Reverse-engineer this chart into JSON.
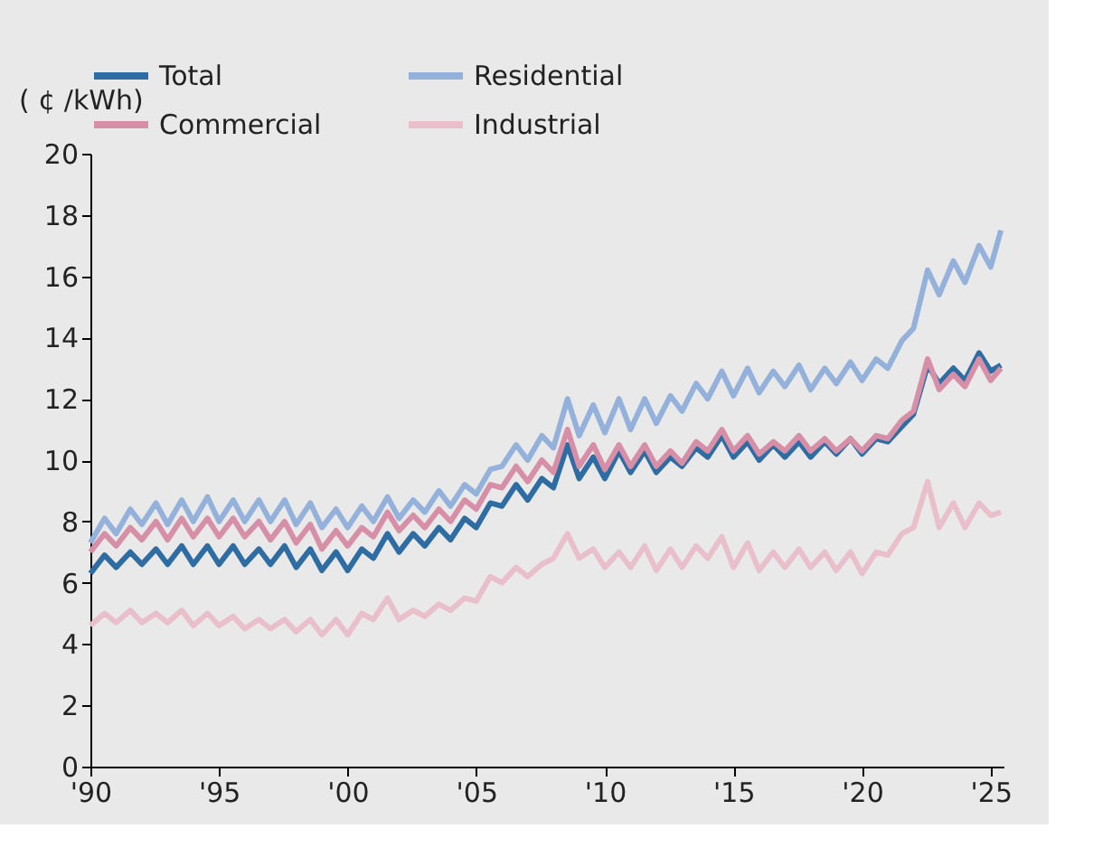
{
  "chart_data": {
    "type": "line",
    "ylabel": "( ¢ /kWh)",
    "x": [
      1990.0,
      1990.55,
      1991.0,
      1991.55,
      1992.0,
      1992.55,
      1993.0,
      1993.55,
      1994.0,
      1994.55,
      1995.0,
      1995.55,
      1996.0,
      1996.55,
      1997.0,
      1997.55,
      1998.0,
      1998.55,
      1999.0,
      1999.55,
      2000.0,
      2000.55,
      2001.0,
      2001.55,
      2002.0,
      2002.55,
      2003.0,
      2003.55,
      2004.0,
      2004.55,
      2005.0,
      2005.55,
      2006.0,
      2006.55,
      2007.0,
      2007.55,
      2008.0,
      2008.55,
      2009.0,
      2009.55,
      2010.0,
      2010.55,
      2011.0,
      2011.55,
      2012.0,
      2012.55,
      2013.0,
      2013.55,
      2014.0,
      2014.55,
      2015.0,
      2015.55,
      2016.0,
      2016.55,
      2017.0,
      2017.55,
      2018.0,
      2018.55,
      2019.0,
      2019.55,
      2020.0,
      2020.55,
      2021.0,
      2021.55,
      2022.0,
      2022.55,
      2023.0,
      2023.55,
      2024.0,
      2024.55,
      2025.0,
      2025.4
    ],
    "series": [
      {
        "name": "Total",
        "color": "#2e6ca4",
        "values": [
          6.3,
          6.9,
          6.5,
          7.0,
          6.6,
          7.1,
          6.6,
          7.2,
          6.6,
          7.2,
          6.6,
          7.2,
          6.6,
          7.1,
          6.6,
          7.2,
          6.5,
          7.1,
          6.4,
          7.0,
          6.4,
          7.1,
          6.8,
          7.6,
          7.0,
          7.6,
          7.2,
          7.8,
          7.4,
          8.1,
          7.8,
          8.6,
          8.5,
          9.2,
          8.7,
          9.4,
          9.1,
          10.5,
          9.4,
          10.1,
          9.4,
          10.3,
          9.6,
          10.3,
          9.6,
          10.1,
          9.8,
          10.4,
          10.1,
          10.8,
          10.1,
          10.6,
          10.0,
          10.5,
          10.1,
          10.6,
          10.1,
          10.6,
          10.2,
          10.7,
          10.2,
          10.7,
          10.6,
          11.1,
          11.5,
          13.1,
          12.5,
          13.0,
          12.6,
          13.5,
          12.9,
          13.1
        ]
      },
      {
        "name": "Residential",
        "color": "#93b1da",
        "values": [
          7.3,
          8.1,
          7.6,
          8.4,
          7.9,
          8.6,
          7.9,
          8.7,
          8.0,
          8.8,
          8.0,
          8.7,
          8.0,
          8.7,
          8.0,
          8.7,
          7.9,
          8.6,
          7.8,
          8.4,
          7.8,
          8.5,
          8.0,
          8.8,
          8.1,
          8.7,
          8.3,
          9.0,
          8.5,
          9.2,
          8.9,
          9.7,
          9.8,
          10.5,
          10.0,
          10.8,
          10.4,
          12.0,
          10.8,
          11.8,
          10.9,
          12.0,
          11.0,
          12.0,
          11.2,
          12.1,
          11.6,
          12.5,
          12.0,
          12.9,
          12.1,
          13.0,
          12.2,
          12.9,
          12.4,
          13.1,
          12.3,
          13.0,
          12.5,
          13.2,
          12.6,
          13.3,
          13.0,
          13.9,
          14.3,
          16.2,
          15.4,
          16.5,
          15.8,
          17.0,
          16.3,
          17.5
        ]
      },
      {
        "name": "Commercial",
        "color": "#d68fa6",
        "values": [
          7.0,
          7.6,
          7.2,
          7.8,
          7.4,
          8.0,
          7.4,
          8.1,
          7.5,
          8.1,
          7.5,
          8.1,
          7.5,
          8.0,
          7.4,
          8.0,
          7.3,
          7.9,
          7.1,
          7.7,
          7.2,
          7.8,
          7.5,
          8.3,
          7.7,
          8.2,
          7.8,
          8.4,
          8.0,
          8.7,
          8.4,
          9.2,
          9.1,
          9.8,
          9.3,
          10.0,
          9.6,
          11.0,
          9.8,
          10.5,
          9.7,
          10.5,
          9.8,
          10.5,
          9.8,
          10.3,
          9.9,
          10.6,
          10.3,
          11.0,
          10.3,
          10.8,
          10.2,
          10.6,
          10.3,
          10.8,
          10.3,
          10.7,
          10.3,
          10.7,
          10.3,
          10.8,
          10.7,
          11.3,
          11.6,
          13.3,
          12.3,
          12.8,
          12.4,
          13.3,
          12.6,
          13.0
        ]
      },
      {
        "name": "Industrial",
        "color": "#e9bfcc",
        "values": [
          4.6,
          5.0,
          4.7,
          5.1,
          4.7,
          5.0,
          4.7,
          5.1,
          4.6,
          5.0,
          4.6,
          4.9,
          4.5,
          4.8,
          4.5,
          4.8,
          4.4,
          4.8,
          4.3,
          4.8,
          4.3,
          5.0,
          4.8,
          5.5,
          4.8,
          5.1,
          4.9,
          5.3,
          5.1,
          5.5,
          5.4,
          6.2,
          6.0,
          6.5,
          6.2,
          6.6,
          6.8,
          7.6,
          6.8,
          7.1,
          6.5,
          7.0,
          6.5,
          7.2,
          6.4,
          7.1,
          6.5,
          7.2,
          6.8,
          7.5,
          6.5,
          7.3,
          6.4,
          7.0,
          6.5,
          7.1,
          6.5,
          7.0,
          6.4,
          7.0,
          6.3,
          7.0,
          6.9,
          7.6,
          7.8,
          9.3,
          7.8,
          8.6,
          7.8,
          8.6,
          8.2,
          8.3
        ]
      }
    ],
    "xlim": [
      1990,
      2025.5
    ],
    "xticks": [
      {
        "value": 1990,
        "label": "'90"
      },
      {
        "value": 1995,
        "label": "'95"
      },
      {
        "value": 2000,
        "label": "'00"
      },
      {
        "value": 2005,
        "label": "'05"
      },
      {
        "value": 2010,
        "label": "'10"
      },
      {
        "value": 2015,
        "label": "'15"
      },
      {
        "value": 2020,
        "label": "'20"
      },
      {
        "value": 2025,
        "label": "'25"
      }
    ],
    "ylim": [
      0,
      20
    ],
    "yticks": [
      0,
      2,
      4,
      6,
      8,
      10,
      12,
      14,
      16,
      18,
      20
    ],
    "grid": false,
    "legend": "top",
    "line_style": "solid",
    "marker": "none"
  }
}
